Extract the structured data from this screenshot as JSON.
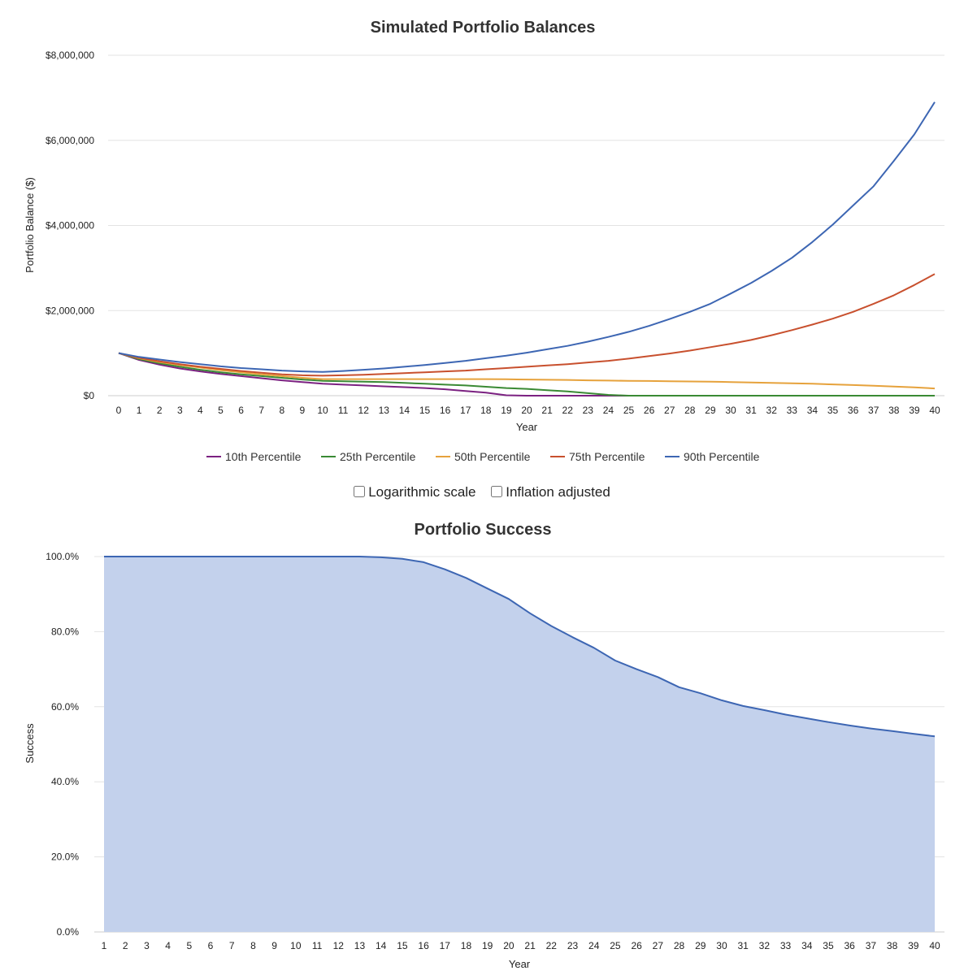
{
  "controls": {
    "log_scale_label": "Logarithmic scale",
    "log_scale_checked": false,
    "inflation_label": "Inflation adjusted",
    "inflation_checked": false
  },
  "colors": {
    "p10": "#7b2181",
    "p25": "#3a8a34",
    "p50": "#e6a23c",
    "p75": "#c8502e",
    "p90": "#3d66b3",
    "success_line": "#3d66b3",
    "success_fill": "#c3d1ec",
    "grid": "#e3e3e3"
  },
  "chart_data": [
    {
      "type": "line",
      "title": "Simulated Portfolio Balances",
      "xlabel": "Year",
      "ylabel": "Portfolio Balance ($)",
      "x": [
        0,
        1,
        2,
        3,
        4,
        5,
        6,
        7,
        8,
        9,
        10,
        11,
        12,
        13,
        14,
        15,
        16,
        17,
        18,
        19,
        20,
        21,
        22,
        23,
        24,
        25,
        26,
        27,
        28,
        29,
        30,
        31,
        32,
        33,
        34,
        35,
        36,
        37,
        38,
        39,
        40
      ],
      "ylim": [
        0,
        8000000
      ],
      "y_ticks": [
        "$0",
        "$2,000,000",
        "$4,000,000",
        "$6,000,000",
        "$8,000,000"
      ],
      "grid": true,
      "legend_position": "bottom",
      "series": [
        {
          "name": "10th Percentile",
          "color_key": "p10",
          "values": [
            1000000,
            840000,
            730000,
            640000,
            570000,
            510000,
            460000,
            410000,
            360000,
            320000,
            280000,
            260000,
            240000,
            220000,
            200000,
            180000,
            150000,
            110000,
            70000,
            10000,
            0,
            0,
            0,
            0,
            0,
            0,
            0,
            0,
            0,
            0,
            0,
            0,
            0,
            0,
            0,
            0,
            0,
            0,
            0,
            0,
            0
          ]
        },
        {
          "name": "25th Percentile",
          "color_key": "p25",
          "values": [
            1000000,
            860000,
            760000,
            680000,
            610000,
            550000,
            500000,
            460000,
            420000,
            380000,
            350000,
            340000,
            330000,
            320000,
            300000,
            280000,
            260000,
            240000,
            210000,
            180000,
            160000,
            130000,
            100000,
            60000,
            20000,
            0,
            0,
            0,
            0,
            0,
            0,
            0,
            0,
            0,
            0,
            0,
            0,
            0,
            0,
            0,
            0
          ]
        },
        {
          "name": "50th Percentile",
          "color_key": "p50",
          "values": [
            1000000,
            880000,
            790000,
            720000,
            660000,
            600000,
            550000,
            500000,
            460000,
            420000,
            390000,
            390000,
            390000,
            390000,
            390000,
            390000,
            390000,
            390000,
            390000,
            385000,
            380000,
            375000,
            370000,
            360000,
            355000,
            350000,
            345000,
            340000,
            335000,
            330000,
            320000,
            310000,
            300000,
            290000,
            280000,
            265000,
            250000,
            235000,
            215000,
            195000,
            170000
          ]
        },
        {
          "name": "75th Percentile",
          "color_key": "p75",
          "values": [
            1000000,
            890000,
            810000,
            740000,
            680000,
            630000,
            580000,
            540000,
            500000,
            480000,
            470000,
            480000,
            490000,
            510000,
            530000,
            550000,
            570000,
            590000,
            620000,
            650000,
            680000,
            710000,
            740000,
            780000,
            820000,
            870000,
            930000,
            990000,
            1060000,
            1140000,
            1220000,
            1310000,
            1420000,
            1540000,
            1670000,
            1810000,
            1970000,
            2160000,
            2360000,
            2600000,
            2860000
          ]
        },
        {
          "name": "90th Percentile",
          "color_key": "p90",
          "values": [
            1000000,
            910000,
            850000,
            790000,
            740000,
            690000,
            650000,
            620000,
            590000,
            570000,
            560000,
            580000,
            610000,
            640000,
            680000,
            720000,
            770000,
            820000,
            880000,
            940000,
            1010000,
            1090000,
            1170000,
            1270000,
            1380000,
            1500000,
            1640000,
            1800000,
            1970000,
            2160000,
            2400000,
            2650000,
            2930000,
            3240000,
            3610000,
            4020000,
            4470000,
            4920000,
            5520000,
            6140000,
            6900000
          ]
        }
      ]
    },
    {
      "type": "area",
      "title": "Portfolio Success",
      "xlabel": "Year",
      "ylabel": "Success",
      "x": [
        1,
        2,
        3,
        4,
        5,
        6,
        7,
        8,
        9,
        10,
        11,
        12,
        13,
        14,
        15,
        16,
        17,
        18,
        19,
        20,
        21,
        22,
        23,
        24,
        25,
        26,
        27,
        28,
        29,
        30,
        31,
        32,
        33,
        34,
        35,
        36,
        37,
        38,
        39,
        40
      ],
      "ylim": [
        0,
        100
      ],
      "y_ticks": [
        "0.0%",
        "20.0%",
        "40.0%",
        "60.0%",
        "80.0%",
        "100.0%"
      ],
      "grid": true,
      "series": [
        {
          "values": [
            100,
            100,
            100,
            100,
            100,
            100,
            100,
            100,
            100,
            100,
            100,
            100,
            100,
            99.8,
            99.4,
            98.5,
            96.6,
            94.3,
            91.5,
            88.7,
            84.9,
            81.5,
            78.5,
            75.7,
            72.3,
            70,
            67.9,
            65.2,
            63.6,
            61.7,
            60.2,
            59.1,
            57.9,
            56.9,
            55.9,
            55,
            54.2,
            53.5,
            52.8,
            52.1
          ]
        }
      ]
    }
  ]
}
